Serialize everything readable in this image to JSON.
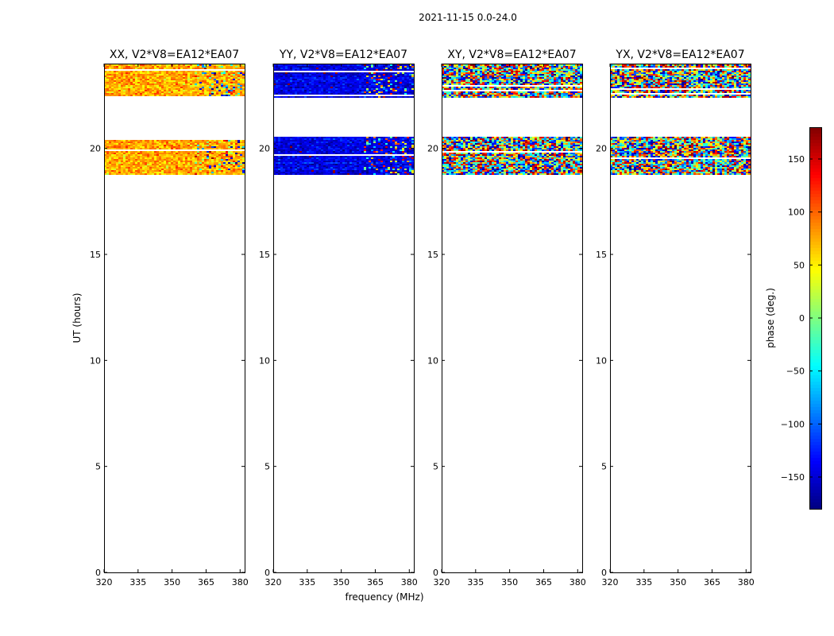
{
  "chart_data": {
    "type": "heatmap",
    "suptitle": "2021-11-15 0.0-24.0",
    "xlabel": "frequency (MHz)",
    "ylabel": "UT (hours)",
    "xlim": [
      320,
      382
    ],
    "ylim": [
      0,
      24
    ],
    "xticks": [
      "320",
      "335",
      "350",
      "365",
      "380"
    ],
    "xtick_values": [
      320,
      335,
      350,
      365,
      380
    ],
    "yticks": [
      "0",
      "5",
      "10",
      "15",
      "20"
    ],
    "ytick_values": [
      0,
      5,
      10,
      15,
      20
    ],
    "data_time_ranges_hours": [
      [
        18.8,
        20.6
      ],
      [
        22.4,
        24.0
      ]
    ],
    "panels": [
      {
        "title": "XX, V2*V8=EA12*EA07",
        "mean_phase_deg": 75,
        "noise_deg": 28
      },
      {
        "title": "YY, V2*V8=EA12*EA07",
        "mean_phase_deg": -145,
        "noise_deg": 22
      },
      {
        "title": "XY, V2*V8=EA12*EA07",
        "mean_phase_deg": 0,
        "noise_deg": 180
      },
      {
        "title": "YX, V2*V8=EA12*EA07",
        "mean_phase_deg": 0,
        "noise_deg": 180
      }
    ],
    "colorbar": {
      "label": "phase (deg.)",
      "range": [
        -180,
        180
      ],
      "ticks": [
        "−150",
        "−100",
        "−50",
        "0",
        "50",
        "100",
        "150"
      ],
      "tick_values": [
        -150,
        -100,
        -50,
        0,
        50,
        100,
        150
      ],
      "colormap": "jet"
    }
  }
}
